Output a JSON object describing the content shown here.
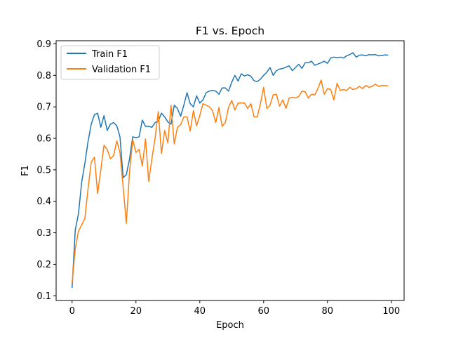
{
  "chart_data": {
    "type": "line",
    "title": "F1 vs. Epoch",
    "xlabel": "Epoch",
    "ylabel": "F1",
    "xlim": [
      -5,
      104
    ],
    "ylim": [
      0.085,
      0.91
    ],
    "xticks": [
      0,
      20,
      40,
      60,
      80,
      100
    ],
    "yticks": [
      0.1,
      0.2,
      0.3,
      0.4,
      0.5,
      0.6,
      0.7,
      0.8,
      0.9
    ],
    "legend_position": "upper-left",
    "grid": false,
    "series": [
      {
        "name": "Train F1",
        "color": "#1f77b4",
        "x": [
          0,
          1,
          2,
          3,
          4,
          5,
          6,
          7,
          8,
          9,
          10,
          11,
          12,
          13,
          14,
          15,
          16,
          17,
          18,
          19,
          20,
          21,
          22,
          23,
          24,
          25,
          26,
          27,
          28,
          29,
          30,
          31,
          32,
          33,
          34,
          35,
          36,
          37,
          38,
          39,
          40,
          41,
          42,
          43,
          44,
          45,
          46,
          47,
          48,
          49,
          50,
          51,
          52,
          53,
          54,
          55,
          56,
          57,
          58,
          59,
          60,
          61,
          62,
          63,
          64,
          65,
          66,
          67,
          68,
          69,
          70,
          71,
          72,
          73,
          74,
          75,
          76,
          77,
          78,
          79,
          80,
          81,
          82,
          83,
          84,
          85,
          86,
          87,
          88,
          89,
          90,
          91,
          92,
          93,
          94,
          95,
          96,
          97,
          98,
          99
        ],
        "values": [
          0.125,
          0.31,
          0.36,
          0.46,
          0.52,
          0.59,
          0.645,
          0.675,
          0.68,
          0.635,
          0.672,
          0.625,
          0.645,
          0.65,
          0.64,
          0.605,
          0.475,
          0.485,
          0.535,
          0.605,
          0.602,
          0.605,
          0.658,
          0.638,
          0.638,
          0.635,
          0.65,
          0.655,
          0.68,
          0.668,
          0.652,
          0.645,
          0.705,
          0.695,
          0.67,
          0.705,
          0.745,
          0.71,
          0.7,
          0.735,
          0.712,
          0.722,
          0.745,
          0.75,
          0.752,
          0.75,
          0.74,
          0.76,
          0.76,
          0.75,
          0.778,
          0.8,
          0.782,
          0.805,
          0.798,
          0.802,
          0.797,
          0.783,
          0.78,
          0.788,
          0.8,
          0.81,
          0.825,
          0.8,
          0.815,
          0.82,
          0.822,
          0.826,
          0.83,
          0.815,
          0.825,
          0.835,
          0.822,
          0.84,
          0.84,
          0.845,
          0.832,
          0.836,
          0.84,
          0.845,
          0.838,
          0.855,
          0.858,
          0.856,
          0.858,
          0.855,
          0.862,
          0.866,
          0.872,
          0.858,
          0.864,
          0.865,
          0.862,
          0.866,
          0.865,
          0.866,
          0.862,
          0.863,
          0.865,
          0.864
        ]
      },
      {
        "name": "Validation F1",
        "color": "#ff7f0e",
        "x": [
          0,
          1,
          2,
          3,
          4,
          5,
          6,
          7,
          8,
          9,
          10,
          11,
          12,
          13,
          14,
          15,
          16,
          17,
          18,
          19,
          20,
          21,
          22,
          23,
          24,
          25,
          26,
          27,
          28,
          29,
          30,
          31,
          32,
          33,
          34,
          35,
          36,
          37,
          38,
          39,
          40,
          41,
          42,
          43,
          44,
          45,
          46,
          47,
          48,
          49,
          50,
          51,
          52,
          53,
          54,
          55,
          56,
          57,
          58,
          59,
          60,
          61,
          62,
          63,
          64,
          65,
          66,
          67,
          68,
          69,
          70,
          71,
          72,
          73,
          74,
          75,
          76,
          77,
          78,
          79,
          80,
          81,
          82,
          83,
          84,
          85,
          86,
          87,
          88,
          89,
          90,
          91,
          92,
          93,
          94,
          95,
          96,
          97,
          98,
          99
        ],
        "values": [
          0.14,
          0.25,
          0.305,
          0.325,
          0.345,
          0.44,
          0.525,
          0.54,
          0.425,
          0.5,
          0.578,
          0.565,
          0.535,
          0.545,
          0.592,
          0.555,
          0.445,
          0.33,
          0.495,
          0.596,
          0.555,
          0.565,
          0.512,
          0.598,
          0.463,
          0.535,
          0.6,
          0.685,
          0.552,
          0.625,
          0.585,
          0.705,
          0.582,
          0.635,
          0.643,
          0.668,
          0.668,
          0.623,
          0.688,
          0.64,
          0.672,
          0.71,
          0.705,
          0.7,
          0.688,
          0.65,
          0.698,
          0.638,
          0.65,
          0.698,
          0.72,
          0.69,
          0.712,
          0.712,
          0.712,
          0.695,
          0.71,
          0.668,
          0.668,
          0.71,
          0.762,
          0.695,
          0.705,
          0.738,
          0.74,
          0.702,
          0.722,
          0.695,
          0.728,
          0.73,
          0.728,
          0.733,
          0.75,
          0.748,
          0.728,
          0.74,
          0.738,
          0.758,
          0.785,
          0.74,
          0.758,
          0.755,
          0.722,
          0.775,
          0.752,
          0.755,
          0.752,
          0.762,
          0.755,
          0.758,
          0.765,
          0.758,
          0.768,
          0.762,
          0.765,
          0.772,
          0.765,
          0.768,
          0.767,
          0.767
        ]
      }
    ]
  }
}
